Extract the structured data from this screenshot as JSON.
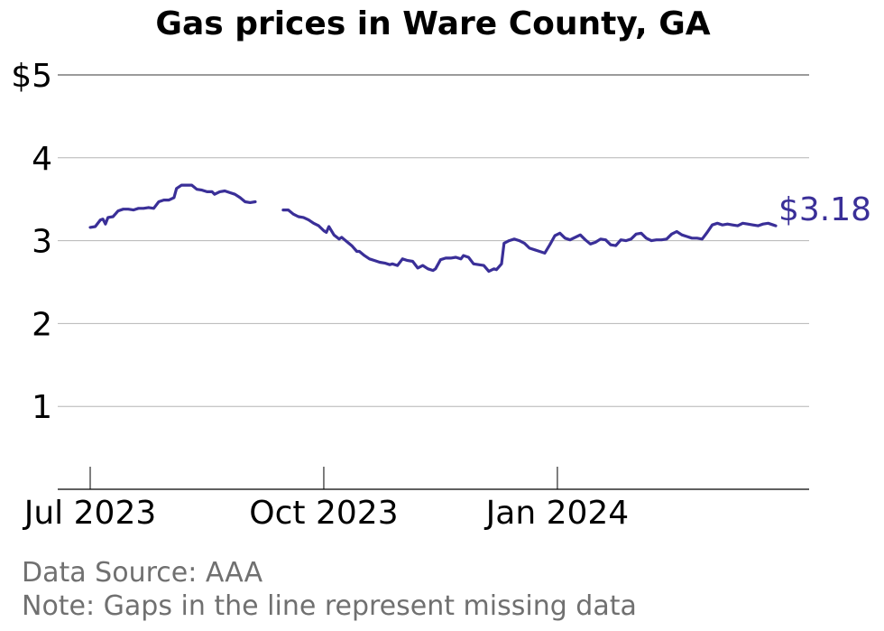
{
  "chart_data": {
    "type": "line",
    "title": "Gas prices in Ware County, GA",
    "xlabel": "",
    "ylabel": "",
    "ylim": [
      0,
      5
    ],
    "xlim": [
      "2023-06-26",
      "2024-03-31"
    ],
    "y_ticks": [
      {
        "value": 5,
        "label": "$5"
      },
      {
        "value": 4,
        "label": "4"
      },
      {
        "value": 3,
        "label": "3"
      },
      {
        "value": 2,
        "label": "2"
      },
      {
        "value": 1,
        "label": "1"
      }
    ],
    "x_ticks": [
      {
        "date": "2023-07-01",
        "label": "Jul 2023"
      },
      {
        "date": "2023-10-01",
        "label": "Oct 2023"
      },
      {
        "date": "2024-01-01",
        "label": "Jan 2024"
      }
    ],
    "grid": true,
    "line_color": "#3a2f98",
    "end_label": "$3.18",
    "series": [
      {
        "segments": [
          [
            [
              "2023-07-01",
              3.16
            ],
            [
              "2023-07-03",
              3.17
            ],
            [
              "2023-07-05",
              3.25
            ],
            [
              "2023-07-06",
              3.26
            ],
            [
              "2023-07-07",
              3.2
            ],
            [
              "2023-07-08",
              3.28
            ],
            [
              "2023-07-10",
              3.29
            ],
            [
              "2023-07-12",
              3.36
            ],
            [
              "2023-07-14",
              3.38
            ],
            [
              "2023-07-16",
              3.38
            ],
            [
              "2023-07-18",
              3.37
            ],
            [
              "2023-07-20",
              3.39
            ],
            [
              "2023-07-22",
              3.39
            ],
            [
              "2023-07-24",
              3.4
            ],
            [
              "2023-07-26",
              3.39
            ],
            [
              "2023-07-28",
              3.47
            ],
            [
              "2023-07-30",
              3.49
            ],
            [
              "2023-08-01",
              3.49
            ],
            [
              "2023-08-03",
              3.52
            ],
            [
              "2023-08-04",
              3.63
            ],
            [
              "2023-08-06",
              3.67
            ],
            [
              "2023-08-08",
              3.67
            ],
            [
              "2023-08-10",
              3.67
            ],
            [
              "2023-08-12",
              3.62
            ],
            [
              "2023-08-14",
              3.61
            ],
            [
              "2023-08-16",
              3.59
            ],
            [
              "2023-08-18",
              3.59
            ],
            [
              "2023-08-19",
              3.56
            ],
            [
              "2023-08-21",
              3.59
            ],
            [
              "2023-08-23",
              3.6
            ],
            [
              "2023-08-25",
              3.58
            ],
            [
              "2023-08-27",
              3.56
            ],
            [
              "2023-08-29",
              3.52
            ],
            [
              "2023-08-31",
              3.47
            ],
            [
              "2023-09-02",
              3.46
            ],
            [
              "2023-09-04",
              3.47
            ]
          ],
          [
            [
              "2023-09-15",
              3.37
            ],
            [
              "2023-09-17",
              3.37
            ],
            [
              "2023-09-19",
              3.32
            ],
            [
              "2023-09-21",
              3.29
            ],
            [
              "2023-09-23",
              3.28
            ],
            [
              "2023-09-25",
              3.25
            ],
            [
              "2023-09-27",
              3.21
            ],
            [
              "2023-09-29",
              3.18
            ],
            [
              "2023-10-01",
              3.12
            ],
            [
              "2023-10-02",
              3.1
            ],
            [
              "2023-10-03",
              3.17
            ],
            [
              "2023-10-05",
              3.07
            ],
            [
              "2023-10-07",
              3.02
            ],
            [
              "2023-10-08",
              3.04
            ],
            [
              "2023-10-10",
              2.99
            ],
            [
              "2023-10-12",
              2.94
            ],
            [
              "2023-10-14",
              2.87
            ],
            [
              "2023-10-15",
              2.87
            ],
            [
              "2023-10-17",
              2.82
            ],
            [
              "2023-10-19",
              2.78
            ],
            [
              "2023-10-21",
              2.76
            ],
            [
              "2023-10-23",
              2.74
            ],
            [
              "2023-10-25",
              2.73
            ],
            [
              "2023-10-27",
              2.71
            ],
            [
              "2023-10-28",
              2.72
            ],
            [
              "2023-10-30",
              2.7
            ],
            [
              "2023-11-01",
              2.78
            ],
            [
              "2023-11-03",
              2.76
            ],
            [
              "2023-11-05",
              2.75
            ],
            [
              "2023-11-07",
              2.67
            ],
            [
              "2023-11-09",
              2.7
            ],
            [
              "2023-11-11",
              2.66
            ],
            [
              "2023-11-13",
              2.64
            ],
            [
              "2023-11-14",
              2.66
            ],
            [
              "2023-11-16",
              2.77
            ],
            [
              "2023-11-18",
              2.79
            ],
            [
              "2023-11-20",
              2.79
            ],
            [
              "2023-11-22",
              2.8
            ],
            [
              "2023-11-24",
              2.78
            ],
            [
              "2023-11-25",
              2.82
            ],
            [
              "2023-11-27",
              2.8
            ],
            [
              "2023-11-29",
              2.72
            ],
            [
              "2023-12-01",
              2.71
            ],
            [
              "2023-12-03",
              2.7
            ],
            [
              "2023-12-05",
              2.63
            ],
            [
              "2023-12-07",
              2.66
            ],
            [
              "2023-12-08",
              2.65
            ],
            [
              "2023-12-10",
              2.72
            ],
            [
              "2023-12-11",
              2.97
            ],
            [
              "2023-12-13",
              3.0
            ],
            [
              "2023-12-15",
              3.02
            ],
            [
              "2023-12-17",
              3.0
            ],
            [
              "2023-12-19",
              2.97
            ],
            [
              "2023-12-21",
              2.91
            ],
            [
              "2023-12-23",
              2.89
            ],
            [
              "2023-12-25",
              2.87
            ],
            [
              "2023-12-27",
              2.85
            ],
            [
              "2023-12-29",
              2.95
            ],
            [
              "2023-12-31",
              3.06
            ],
            [
              "2024-01-02",
              3.09
            ],
            [
              "2024-01-04",
              3.03
            ],
            [
              "2024-01-06",
              3.01
            ],
            [
              "2024-01-08",
              3.04
            ],
            [
              "2024-01-10",
              3.07
            ],
            [
              "2024-01-12",
              3.01
            ],
            [
              "2024-01-14",
              2.96
            ],
            [
              "2024-01-16",
              2.98
            ],
            [
              "2024-01-18",
              3.02
            ],
            [
              "2024-01-20",
              3.01
            ],
            [
              "2024-01-22",
              2.95
            ],
            [
              "2024-01-24",
              2.94
            ],
            [
              "2024-01-26",
              3.01
            ],
            [
              "2024-01-28",
              3.0
            ],
            [
              "2024-01-30",
              3.02
            ],
            [
              "2024-02-01",
              3.08
            ],
            [
              "2024-02-03",
              3.09
            ],
            [
              "2024-02-05",
              3.03
            ],
            [
              "2024-02-07",
              3.0
            ],
            [
              "2024-02-09",
              3.01
            ],
            [
              "2024-02-11",
              3.01
            ],
            [
              "2024-02-13",
              3.02
            ],
            [
              "2024-02-15",
              3.08
            ],
            [
              "2024-02-17",
              3.11
            ],
            [
              "2024-02-19",
              3.07
            ],
            [
              "2024-02-21",
              3.05
            ],
            [
              "2024-02-23",
              3.03
            ],
            [
              "2024-02-25",
              3.03
            ],
            [
              "2024-02-27",
              3.02
            ],
            [
              "2024-02-29",
              3.1
            ],
            [
              "2024-03-02",
              3.19
            ],
            [
              "2024-03-04",
              3.21
            ],
            [
              "2024-03-06",
              3.19
            ],
            [
              "2024-03-08",
              3.2
            ],
            [
              "2024-03-10",
              3.19
            ],
            [
              "2024-03-12",
              3.18
            ],
            [
              "2024-03-14",
              3.21
            ],
            [
              "2024-03-16",
              3.2
            ],
            [
              "2024-03-18",
              3.19
            ],
            [
              "2024-03-20",
              3.18
            ],
            [
              "2024-03-22",
              3.2
            ],
            [
              "2024-03-24",
              3.21
            ],
            [
              "2024-03-26",
              3.19
            ],
            [
              "2024-03-27",
              3.18
            ]
          ]
        ]
      }
    ]
  },
  "footer": {
    "source": "Data Source: AAA",
    "note": "Note: Gaps in the line represent missing data"
  }
}
